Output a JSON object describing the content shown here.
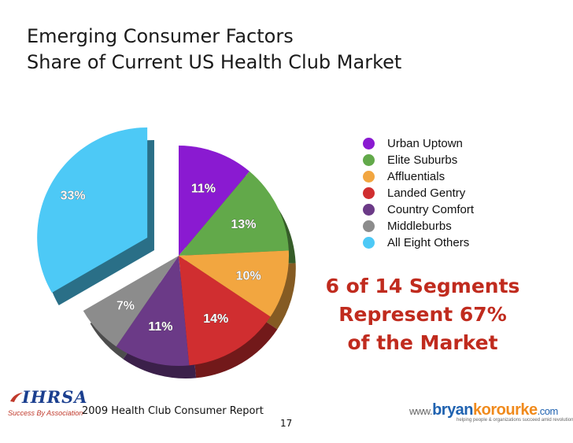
{
  "title_lines": [
    "Emerging Consumer Factors",
    "Share of Current US Health Club Market"
  ],
  "chart_data": {
    "type": "pie",
    "title": "Emerging Consumer Factors\nShare of Current US Health Club Market",
    "legend_position": "right",
    "slices": [
      {
        "label": "Urban Uptown",
        "value": 11,
        "display": "11%",
        "color": "#8a1ad1"
      },
      {
        "label": "Elite Suburbs",
        "value": 13,
        "display": "13%",
        "color": "#62a94a"
      },
      {
        "label": "Affluentials",
        "value": 10,
        "display": "10%",
        "color": "#f2a640"
      },
      {
        "label": "Landed Gentry",
        "value": 14,
        "display": "14%",
        "color": "#d02e30"
      },
      {
        "label": "Country Comfort",
        "value": 11,
        "display": "11%",
        "color": "#6b3a87"
      },
      {
        "label": "Middleburbs",
        "value": 7,
        "display": "7%",
        "color": "#8c8c8c"
      },
      {
        "label": "All Eight Others",
        "value": 33,
        "display": "33%",
        "color": "#4dc9f6",
        "exploded": true
      }
    ]
  },
  "callout_lines": [
    "6 of 14 Segments",
    "Represent 67%",
    "of the Market"
  ],
  "footer": {
    "report": "2009 Health Club Consumer Report",
    "page_number": "17"
  },
  "logos": {
    "ihrsa_word": "IHRSA",
    "ihrsa_tagline": "Success By Association",
    "bk_www": "www.",
    "bk_name1": "bryan",
    "bk_name2": "korourke",
    "bk_com": ".com",
    "bk_tagline": "helping people & organizations succeed amid revolutionary change"
  }
}
